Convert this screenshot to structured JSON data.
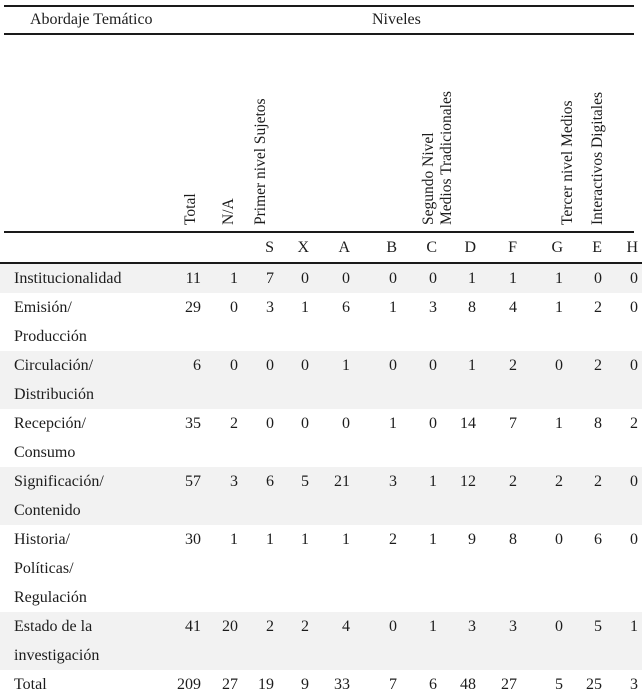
{
  "header": {
    "left_title": "Abordaje Temático",
    "right_title": "Niveles"
  },
  "rotated_headers": [
    {
      "name": "total",
      "lines": [
        "Total"
      ]
    },
    {
      "name": "na",
      "lines": [
        "N/A"
      ]
    },
    {
      "name": "primer",
      "lines": [
        "Primer nivel Sujetos"
      ]
    },
    {
      "name": "segundo",
      "lines": [
        "Segundo Nivel",
        "Medios Tradicionales"
      ]
    },
    {
      "name": "tercer",
      "lines": [
        "Tercer nivel Medios",
        "Interactivos Digitales"
      ]
    }
  ],
  "table": {
    "letters": [
      "",
      "",
      "S",
      "X",
      "A",
      "B",
      "C",
      "D",
      "F",
      "G",
      "E",
      "H"
    ],
    "rows": [
      {
        "label": "Institucionalidad",
        "values": [
          11,
          1,
          7,
          0,
          0,
          0,
          0,
          1,
          1,
          1,
          0,
          0
        ],
        "shaded": true
      },
      {
        "label": "Emisión/\nProducción",
        "values": [
          29,
          0,
          3,
          1,
          6,
          1,
          3,
          8,
          4,
          1,
          2,
          0
        ],
        "shaded": false
      },
      {
        "label": "Circulación/\nDistribución",
        "values": [
          6,
          0,
          0,
          0,
          1,
          0,
          0,
          1,
          2,
          0,
          2,
          0
        ],
        "shaded": true
      },
      {
        "label": "Recepción/\nConsumo",
        "values": [
          35,
          2,
          0,
          0,
          0,
          1,
          0,
          14,
          7,
          1,
          8,
          2
        ],
        "shaded": false
      },
      {
        "label": "Significación/\nContenido",
        "values": [
          57,
          3,
          6,
          5,
          21,
          3,
          1,
          12,
          2,
          2,
          2,
          0
        ],
        "shaded": true
      },
      {
        "label": "Historia/\nPolíticas/\nRegulación",
        "values": [
          30,
          1,
          1,
          1,
          1,
          2,
          1,
          9,
          8,
          0,
          6,
          0
        ],
        "shaded": false
      },
      {
        "label": "Estado de la\ninvestigación",
        "values": [
          41,
          20,
          2,
          2,
          4,
          0,
          1,
          3,
          3,
          0,
          5,
          1
        ],
        "shaded": true
      },
      {
        "label": "Total",
        "values": [
          209,
          27,
          19,
          9,
          33,
          7,
          6,
          48,
          27,
          5,
          25,
          3
        ],
        "shaded": false
      }
    ]
  },
  "colors": {
    "text": "#1c1c1c",
    "rule": "#1a1a1a",
    "row_stripe": "#f2f2f2",
    "background": "#ffffff"
  }
}
